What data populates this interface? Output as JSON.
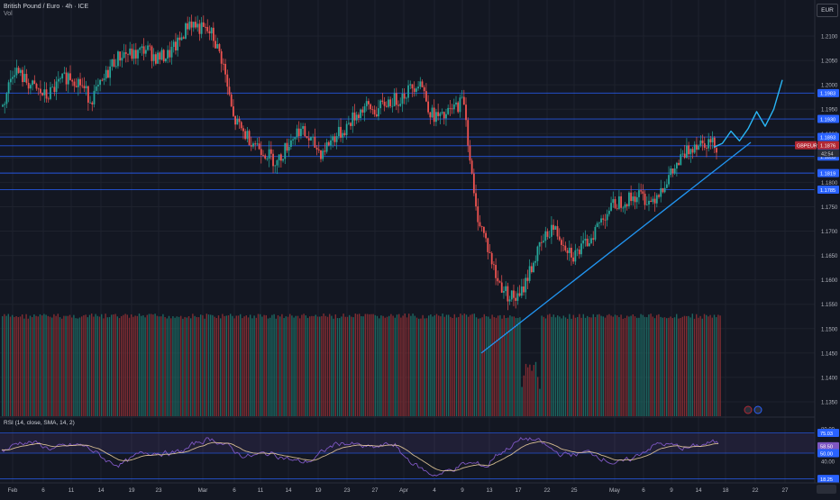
{
  "header": {
    "symbol_title": "British Pound / Euro · 4h · ICE",
    "volume_label": "Vol",
    "currency_button": "EUR",
    "rsi_title": "RSI (14, close, SMA, 14, 2)"
  },
  "colors": {
    "background": "#131722",
    "up": "#26a69a",
    "down": "#ef5350",
    "level_line": "#2962ff",
    "trendline": "#2196f3",
    "projection": "#29b6f6",
    "rsi_line": "#7e57c2",
    "rsi_ma": "#f5d7a1",
    "badge_blue": "#2962ff",
    "badge_red": "#b22833"
  },
  "price_axis": {
    "ticks": [
      "1.2100",
      "1.2050",
      "1.2000",
      "1.1950",
      "1.1900",
      "1.1850",
      "1.1800",
      "1.1750",
      "1.1700",
      "1.1650",
      "1.1600",
      "1.1550",
      "1.1500",
      "1.1450",
      "1.1400",
      "1.1350"
    ],
    "level_badges": [
      {
        "value": 1.1983,
        "label": "1.1983"
      },
      {
        "value": 1.193,
        "label": "1.1930"
      },
      {
        "value": 1.1893,
        "label": "1.1893"
      },
      {
        "value": 1.1875,
        "label": "1.1875"
      },
      {
        "value": 1.1853,
        "label": "1.1853"
      },
      {
        "value": 1.1819,
        "label": "1.1819"
      },
      {
        "value": 1.1785,
        "label": "1.1785"
      }
    ],
    "symbol_badge": {
      "label": "GBPEUR",
      "value": "1.1876",
      "countdown": "42:54"
    }
  },
  "rsi_axis": {
    "ticks": [
      "80.00",
      "60.00",
      "40.00"
    ],
    "badges": [
      {
        "value": 75.03,
        "label": "75.03"
      },
      {
        "value": 58.5,
        "label": "58.50"
      },
      {
        "value": 50.0,
        "label": "50.00"
      },
      {
        "value": 18.25,
        "label": "18.25"
      }
    ]
  },
  "time_axis": {
    "labels": [
      "Feb",
      "6",
      "11",
      "14",
      "19",
      "23",
      "Mar",
      "6",
      "11",
      "14",
      "19",
      "23",
      "27",
      "Apr",
      "4",
      "9",
      "13",
      "17",
      "22",
      "25",
      "May",
      "6",
      "9",
      "14",
      "18",
      "22",
      "27"
    ]
  },
  "chart_data": [
    {
      "type": "line",
      "title": "British Pound / Euro · 4h · ICE",
      "ylim": [
        1.132,
        1.216
      ],
      "x_axis_labels": [
        "Feb",
        "6",
        "11",
        "14",
        "19",
        "23",
        "Mar",
        "6",
        "11",
        "14",
        "19",
        "23",
        "27",
        "Apr",
        "4",
        "9",
        "13",
        "17",
        "22",
        "25",
        "May",
        "6",
        "9",
        "14",
        "18",
        "22",
        "27"
      ],
      "close_series_approx": [
        1.1955,
        1.2035,
        1.201,
        1.199,
        1.1975,
        1.2,
        1.202,
        1.2005,
        1.197,
        1.2,
        1.2045,
        1.2065,
        1.206,
        1.2075,
        1.2055,
        1.206,
        1.2085,
        1.213,
        1.2115,
        1.2105,
        1.205,
        1.193,
        1.19,
        1.188,
        1.186,
        1.184,
        1.188,
        1.191,
        1.1885,
        1.186,
        1.189,
        1.1905,
        1.1935,
        1.1955,
        1.1945,
        1.1965,
        1.197,
        1.199,
        1.201,
        1.194,
        1.193,
        1.195,
        1.197,
        1.175,
        1.168,
        1.16,
        1.157,
        1.156,
        1.162,
        1.167,
        1.171,
        1.168,
        1.165,
        1.167,
        1.1705,
        1.174,
        1.176,
        1.1765,
        1.1775,
        1.176,
        1.179,
        1.182,
        1.1855,
        1.188,
        1.1885,
        1.1876
      ],
      "horizontal_levels": [
        1.1983,
        1.193,
        1.1893,
        1.1875,
        1.1853,
        1.1819,
        1.1785
      ],
      "trendline": {
        "from": {
          "x": "Apr 11",
          "y": 1.145
        },
        "to": {
          "x": "May 16",
          "y": 1.1885
        }
      },
      "projection_path_approx": [
        1.1872,
        1.188,
        1.1905,
        1.1885,
        1.191,
        1.1945,
        1.1915,
        1.195,
        1.201
      ]
    },
    {
      "type": "line",
      "title": "RSI (14, close, SMA, 14, 2)",
      "ylim": [
        10,
        90
      ],
      "reference_lines": [
        75.03,
        50.0,
        18.25
      ],
      "band": [
        50.0,
        75.03
      ]
    }
  ]
}
